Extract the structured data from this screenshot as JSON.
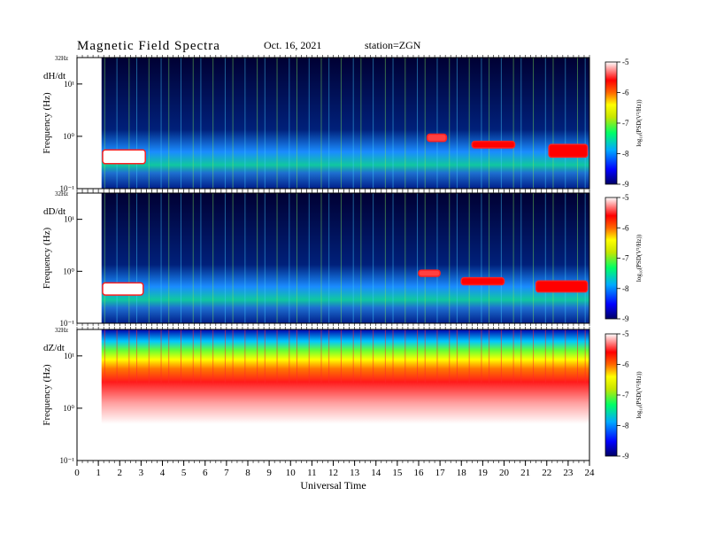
{
  "header": {
    "title": "Magnetic  Field  Spectra",
    "date": "Oct. 16, 2021",
    "station": "station=ZGN"
  },
  "chart_data": {
    "type": "heatmap",
    "x": {
      "label": "Universal Time",
      "range": [
        0,
        24
      ],
      "ticks": [
        "0",
        "1",
        "2",
        "3",
        "4",
        "5",
        "6",
        "7",
        "8",
        "9",
        "10",
        "11",
        "12",
        "13",
        "14",
        "15",
        "16",
        "17",
        "18",
        "19",
        "20",
        "21",
        "22",
        "23",
        "24"
      ]
    },
    "colorbar": {
      "label": "log₁₀(PSD(V²/Hz))",
      "range": [
        -9,
        -5
      ],
      "ticks": [
        "-5",
        "-6",
        "-7",
        "-8",
        "-9"
      ],
      "colors": [
        "#000066",
        "#0000ff",
        "#00aaff",
        "#00ff66",
        "#c8e600",
        "#ffff00",
        "#ff6600",
        "#ff0000",
        "#ffffff"
      ]
    },
    "panels": [
      {
        "label": "dH/dt",
        "ylabel": "Frequency  (Hz)",
        "top_tick": "32Hz",
        "yticks": [
          "10⁻¹",
          "10⁰",
          "10¹"
        ],
        "features": [
          {
            "ut": [
              1.2,
              3.2
            ],
            "freq_hz": [
              0.3,
              0.55
            ],
            "level": -5
          },
          {
            "ut": [
              16.4,
              17.3
            ],
            "freq_hz": [
              0.8,
              1.1
            ],
            "level": -5.3
          },
          {
            "ut": [
              18.5,
              20.5
            ],
            "freq_hz": [
              0.6,
              0.8
            ],
            "level": -5.8
          },
          {
            "ut": [
              22.1,
              23.9
            ],
            "freq_hz": [
              0.4,
              0.7
            ],
            "level": -5.6
          }
        ]
      },
      {
        "label": "dD/dt",
        "ylabel": "Frequency  (Hz)",
        "top_tick": "32Hz",
        "yticks": [
          "10⁻¹",
          "10⁰",
          "10¹"
        ],
        "features": [
          {
            "ut": [
              1.2,
              3.1
            ],
            "freq_hz": [
              0.35,
              0.6
            ],
            "level": -5
          },
          {
            "ut": [
              16.0,
              17.0
            ],
            "freq_hz": [
              0.8,
              1.05
            ],
            "level": -5.3
          },
          {
            "ut": [
              18.0,
              20.0
            ],
            "freq_hz": [
              0.55,
              0.75
            ],
            "level": -5.8
          },
          {
            "ut": [
              21.5,
              23.9
            ],
            "freq_hz": [
              0.4,
              0.65
            ],
            "level": -5.7
          }
        ]
      },
      {
        "label": "dZ/dt",
        "ylabel": "Frequency  (Hz)",
        "top_tick": "32Hz",
        "yticks": [
          "10⁻¹",
          "10⁰",
          "10¹"
        ],
        "features": [
          {
            "ut": [
              1.1,
              24
            ],
            "freq_hz": [
              4,
              32
            ],
            "level": -7
          },
          {
            "ut": [
              1.1,
              24
            ],
            "freq_hz": [
              0.1,
              4
            ],
            "level": -5.2
          }
        ]
      }
    ]
  }
}
